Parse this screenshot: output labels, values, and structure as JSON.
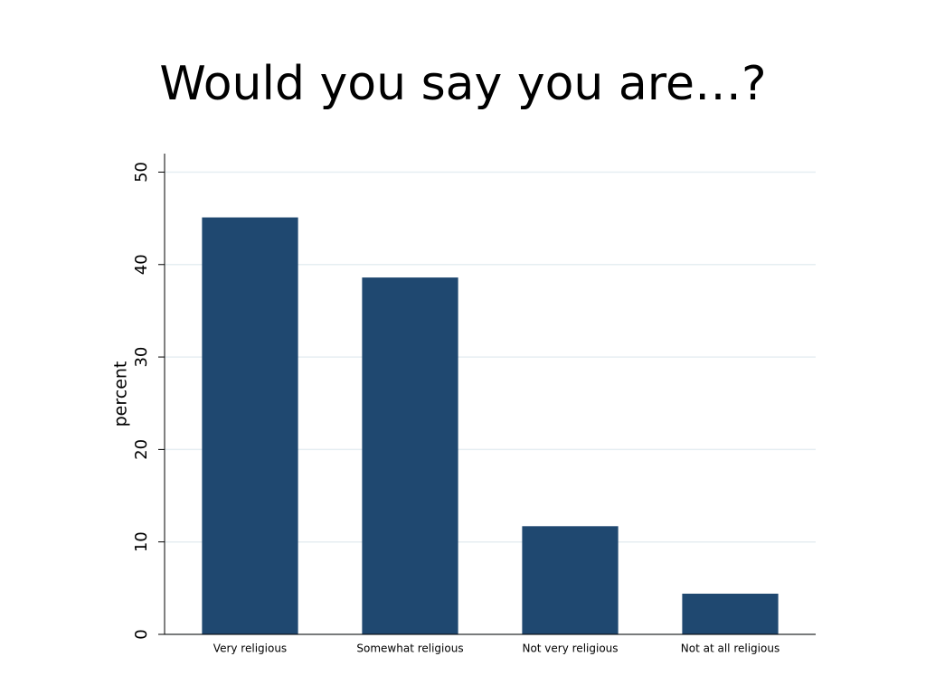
{
  "chart_data": {
    "type": "bar",
    "title": "Would you say you are…?",
    "y_label": "percent",
    "categories": [
      "Very religious",
      "Somewhat religious",
      "Not very religious",
      "Not at all religious"
    ],
    "values": [
      45.1,
      38.6,
      11.7,
      4.4
    ],
    "color": "#1f4870",
    "ylim": [
      0,
      52
    ],
    "yticks": [
      0,
      10,
      20,
      30,
      40,
      50
    ],
    "grid": true
  }
}
